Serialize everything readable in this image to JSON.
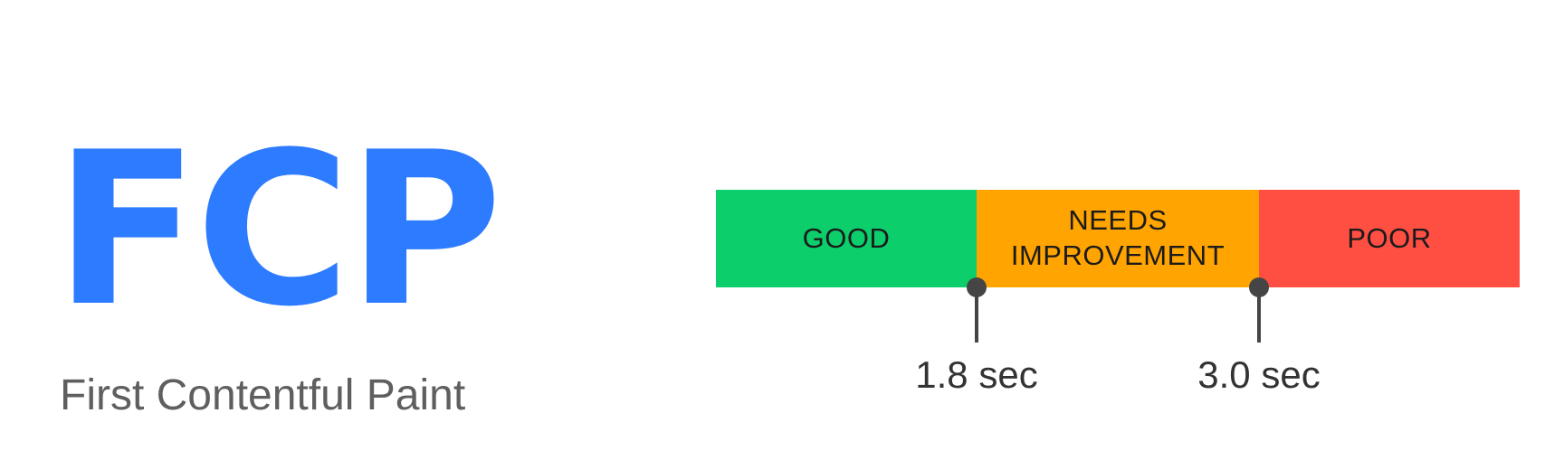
{
  "metric": {
    "acronym": "FCP",
    "full_name": "First Contentful Paint",
    "accent_color": "#2d7bff"
  },
  "scale": {
    "segments": [
      {
        "id": "good",
        "label": "GOOD",
        "color": "#0cce6b",
        "from": 0,
        "to": 1.8
      },
      {
        "id": "needs-improvement",
        "label_lines": [
          "NEEDS",
          "IMPROVEMENT"
        ],
        "color": "#ffa400",
        "from": 1.8,
        "to": 3.0
      },
      {
        "id": "poor",
        "label": "POOR",
        "color": "#ff4e42",
        "from": 3.0,
        "to": 4.8
      }
    ],
    "thresholds": [
      {
        "value": 1.8,
        "label": "1.8 sec"
      },
      {
        "value": 3.0,
        "label": "3.0 sec"
      }
    ]
  }
}
